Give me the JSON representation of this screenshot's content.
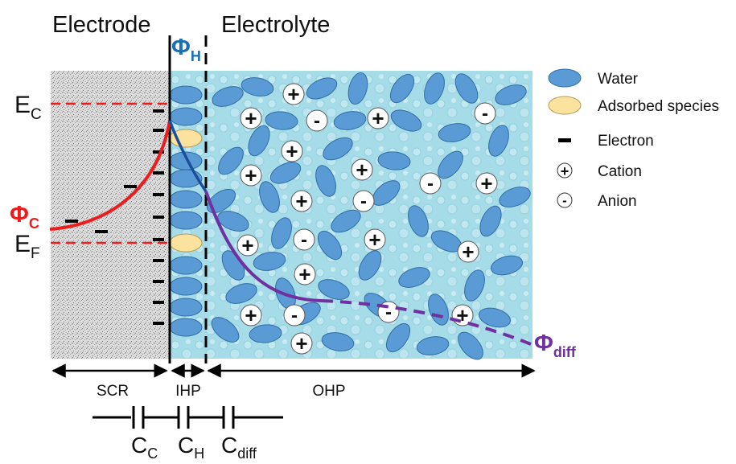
{
  "regions": {
    "electrode": "Electrode",
    "electrolyte": "Electrolyte"
  },
  "energy_levels": {
    "ec_main": "E",
    "ec_sub": "C",
    "ef_main": "E",
    "ef_sub": "F"
  },
  "potentials": {
    "phi_h_main": "Φ",
    "phi_h_sub": "H",
    "phi_c_main": "Φ",
    "phi_c_sub": "C",
    "phi_diff_main": "Φ",
    "phi_diff_sub": "diff"
  },
  "zones": {
    "scr": "SCR",
    "ihp": "IHP",
    "ohp": "OHP"
  },
  "capacitors": {
    "cc_main": "C",
    "cc_sub": "C",
    "ch_main": "C",
    "ch_sub": "H",
    "cdiff_main": "C",
    "cdiff_sub": "diff"
  },
  "legend": [
    {
      "label": "Water",
      "icon": "water-molecule-icon"
    },
    {
      "label": "Adsorbed species",
      "icon": "adsorbed-species-icon"
    },
    {
      "label": "Electron",
      "icon": "electron-icon"
    },
    {
      "label": "Cation",
      "icon": "cation-icon"
    },
    {
      "label": "Anion",
      "icon": "anion-icon"
    }
  ],
  "symbols": {
    "plus": "+",
    "minus": "-"
  },
  "colors": {
    "water": "#5b9bd5",
    "adsorbed": "#fbe29f",
    "electrolyte_bg": "#a6dce8",
    "phi_c": "#ee1c1c",
    "phi_h": "#1b6fb8",
    "phi_diff": "#7030a0",
    "ec_ef_lines": "#ee1c1c"
  }
}
